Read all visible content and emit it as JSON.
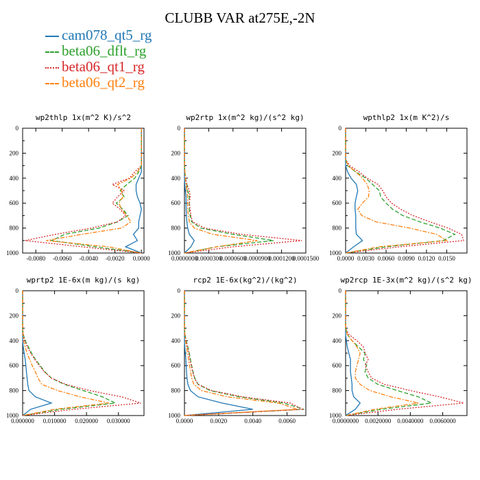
{
  "title": "CLUBB VAR at275E,-2N",
  "colors": {
    "cam078_qt5_rg": "#1f77b4",
    "beta06_dflt_rg": "#2ca02c",
    "beta06_qt1_rg": "#d62728",
    "beta06_qt2_rg": "#ff7f0e"
  },
  "legend": [
    {
      "name": "cam078_qt5_rg",
      "color": "#1f77b4",
      "dash": "solid"
    },
    {
      "name": "beta06_dflt_rg",
      "color": "#2ca02c",
      "dash": "dashed"
    },
    {
      "name": "beta06_qt1_rg",
      "color": "#d62728",
      "dash": "dotted"
    },
    {
      "name": "beta06_qt2_rg",
      "color": "#ff7f0e",
      "dash": "dashdot"
    }
  ],
  "chart_data": [
    {
      "type": "line",
      "title": "wp2thlp  1x(m^2 K)/s^2",
      "xlim": [
        -0.009,
        0.0002
      ],
      "ylim": [
        1000,
        0
      ],
      "xticks": [
        -0.008,
        -0.006,
        -0.004,
        -0.002,
        0.0
      ],
      "xtick_labels": [
        "-0.0080",
        "-0.0060",
        "-0.0040",
        "-0.0020",
        "0.0000"
      ],
      "yticks": [
        0,
        200,
        400,
        600,
        800,
        1000
      ],
      "y_levels": [
        0,
        300,
        350,
        400,
        450,
        500,
        550,
        600,
        650,
        700,
        750,
        800,
        850,
        900,
        950,
        1000
      ],
      "series": [
        {
          "name": "cam078_qt5_rg",
          "x": [
            0.0,
            0.0,
            0.0,
            -0.0002,
            -0.0004,
            -0.0004,
            -0.0003,
            -0.0001,
            0.0,
            -0.0001,
            -0.0002,
            -0.0002,
            -0.0006,
            -0.0003,
            -0.0012,
            0.0
          ]
        },
        {
          "name": "beta06_dflt_rg",
          "x": [
            0.0,
            0.0,
            -0.0002,
            -0.0005,
            -0.0011,
            -0.0016,
            -0.0013,
            -0.0019,
            -0.0014,
            -0.001,
            -0.0018,
            -0.0032,
            -0.0058,
            -0.0068,
            -0.0035,
            0.0
          ]
        },
        {
          "name": "beta06_qt1_rg",
          "x": [
            0.0,
            0.0,
            -0.0005,
            -0.0009,
            -0.0022,
            -0.0013,
            -0.0018,
            -0.0022,
            -0.0016,
            -0.0012,
            -0.0018,
            -0.0038,
            -0.0065,
            -0.0088,
            -0.0045,
            0.0
          ]
        },
        {
          "name": "beta06_qt2_rg",
          "x": [
            0.0,
            0.0,
            -0.0003,
            -0.0008,
            -0.0018,
            -0.0015,
            -0.0014,
            -0.0017,
            -0.0015,
            -0.0011,
            -0.0008,
            -0.0015,
            -0.0045,
            -0.0072,
            -0.0025,
            0.0
          ]
        }
      ]
    },
    {
      "type": "line",
      "title": "wp2rtp  1x(m^2 kg)/(s^2 kg)",
      "xlim": [
        0.0,
        0.00015
      ],
      "ylim": [
        1000,
        0
      ],
      "xticks": [
        0.0,
        3e-05,
        6e-05,
        9e-05,
        0.00012,
        0.00015
      ],
      "xtick_labels": [
        "0.0000000",
        "0.0000300",
        "0.0000600",
        "0.0000900",
        "0.0001200",
        "0.0001500"
      ],
      "yticks": [
        0,
        200,
        400,
        600,
        800,
        1000
      ],
      "y_levels": [
        0,
        300,
        350,
        400,
        450,
        500,
        550,
        600,
        650,
        700,
        750,
        800,
        850,
        900,
        950,
        1000
      ],
      "series": [
        {
          "name": "cam078_qt5_rg",
          "x": [
            0.0,
            0.0,
            0.0,
            0.0,
            5e-07,
            1e-06,
            2e-06,
            2e-06,
            2e-06,
            2.5e-06,
            3e-06,
            4e-06,
            6e-06,
            1.2e-05,
            8e-06,
            0.0
          ]
        },
        {
          "name": "beta06_dflt_rg",
          "x": [
            0.0,
            0.0,
            5e-07,
            1e-06,
            3e-06,
            4e-06,
            6e-06,
            6e-06,
            6e-06,
            7e-06,
            9e-06,
            2e-05,
            6e-05,
            0.00011,
            4e-05,
            0.0
          ]
        },
        {
          "name": "beta06_qt1_rg",
          "x": [
            0.0,
            0.0,
            5e-07,
            1.5e-06,
            3e-06,
            6e-06,
            7e-06,
            6e-06,
            7e-06,
            8e-06,
            1e-05,
            2.5e-05,
            7e-05,
            0.000145,
            6e-05,
            0.0
          ]
        },
        {
          "name": "beta06_qt2_rg",
          "x": [
            0.0,
            0.0,
            5e-07,
            1e-06,
            2e-06,
            3e-06,
            4e-06,
            4e-06,
            4e-06,
            5e-06,
            6e-06,
            1.2e-05,
            3.5e-05,
            9e-05,
            4e-05,
            0.0
          ]
        }
      ]
    },
    {
      "type": "line",
      "title": "wpthlp2  1x(m K^2)/s",
      "xlim": [
        0.0,
        0.018
      ],
      "ylim": [
        1000,
        0
      ],
      "xticks": [
        0.0,
        0.003,
        0.006,
        0.009,
        0.012,
        0.015
      ],
      "xtick_labels": [
        "0.0000",
        "0.0030",
        "0.0060",
        "0.0090",
        "0.0120",
        "0.0150"
      ],
      "yticks": [
        0,
        200,
        400,
        600,
        800,
        1000
      ],
      "y_levels": [
        0,
        250,
        300,
        350,
        400,
        450,
        500,
        550,
        600,
        650,
        700,
        750,
        800,
        850,
        900,
        950,
        1000
      ],
      "series": [
        {
          "name": "cam078_qt5_rg",
          "x": [
            0.0,
            0.0,
            0.0,
            0.0003,
            0.0008,
            0.0016,
            0.0018,
            0.0016,
            0.0014,
            0.0014,
            0.0015,
            0.0015,
            0.0015,
            0.0016,
            0.0025,
            0.0012,
            0.0
          ]
        },
        {
          "name": "beta06_dflt_rg",
          "x": [
            0.0,
            0.0,
            0.0003,
            0.0015,
            0.003,
            0.004,
            0.005,
            0.0052,
            0.006,
            0.007,
            0.0085,
            0.011,
            0.014,
            0.0162,
            0.0145,
            0.006,
            0.0
          ]
        },
        {
          "name": "beta06_qt1_rg",
          "x": [
            0.0,
            0.0,
            0.0006,
            0.002,
            0.0032,
            0.0048,
            0.0055,
            0.006,
            0.0068,
            0.0082,
            0.01,
            0.0125,
            0.0152,
            0.0172,
            0.0175,
            0.008,
            0.0
          ]
        },
        {
          "name": "beta06_qt2_rg",
          "x": [
            0.0,
            0.0,
            0.0004,
            0.0015,
            0.0025,
            0.0032,
            0.0035,
            0.0034,
            0.0025,
            0.0018,
            0.0024,
            0.0045,
            0.0095,
            0.0135,
            0.015,
            0.005,
            0.0
          ]
        }
      ]
    },
    {
      "type": "line",
      "title": "wprtp2  1E-6x(m kg)/(s kg)",
      "xlim": [
        0.0,
        0.038
      ],
      "ylim": [
        1000,
        0
      ],
      "xticks": [
        0.0,
        0.01,
        0.02,
        0.03
      ],
      "xtick_labels": [
        "0.000000",
        "0.010000",
        "0.020000",
        "0.030000"
      ],
      "yticks": [
        0,
        200,
        400,
        600,
        800,
        1000
      ],
      "y_levels": [
        0,
        300,
        350,
        400,
        450,
        500,
        550,
        600,
        650,
        700,
        750,
        800,
        850,
        900,
        950,
        1000
      ],
      "series": [
        {
          "name": "cam078_qt5_rg",
          "x": [
            0.0,
            0.0,
            0.0,
            0.0,
            0.0002,
            0.0005,
            0.0008,
            0.001,
            0.0012,
            0.0014,
            0.0016,
            0.002,
            0.004,
            0.009,
            0.0025,
            0.0
          ]
        },
        {
          "name": "beta06_dflt_rg",
          "x": [
            0.0,
            0.0,
            0.0002,
            0.0008,
            0.0018,
            0.0028,
            0.004,
            0.0055,
            0.007,
            0.009,
            0.013,
            0.019,
            0.025,
            0.029,
            0.012,
            0.0
          ]
        },
        {
          "name": "beta06_qt1_rg",
          "x": [
            0.0,
            0.0,
            0.0002,
            0.0006,
            0.0015,
            0.0025,
            0.0038,
            0.0052,
            0.0068,
            0.009,
            0.0135,
            0.021,
            0.031,
            0.037,
            0.016,
            0.0
          ]
        },
        {
          "name": "beta06_qt2_rg",
          "x": [
            0.0,
            0.0,
            0.0001,
            0.0003,
            0.0008,
            0.0014,
            0.0022,
            0.003,
            0.004,
            0.0048,
            0.006,
            0.011,
            0.018,
            0.027,
            0.01,
            0.0
          ]
        }
      ]
    },
    {
      "type": "line",
      "title": "rcp2  1E-6x(kg^2)/(kg^2)",
      "xlim": [
        0.0,
        0.0071
      ],
      "ylim": [
        1000,
        0
      ],
      "xticks": [
        0.0,
        0.002,
        0.004,
        0.006
      ],
      "xtick_labels": [
        "0.0000",
        "0.0020",
        "0.0040",
        "0.0060"
      ],
      "yticks": [
        0,
        200,
        400,
        600,
        800,
        1000
      ],
      "y_levels": [
        0,
        300,
        350,
        400,
        450,
        500,
        550,
        600,
        650,
        700,
        750,
        800,
        850,
        900,
        950,
        1000
      ],
      "series": [
        {
          "name": "cam078_qt5_rg",
          "x": [
            0.0,
            0.0,
            0.0,
            0.0,
            2e-05,
            5e-05,
            8e-05,
            0.0001,
            0.00012,
            0.00015,
            0.0002,
            0.00035,
            0.0008,
            0.0022,
            0.004,
            0.0
          ]
        },
        {
          "name": "beta06_dflt_rg",
          "x": [
            0.0,
            0.0,
            3e-05,
            0.0001,
            0.0002,
            0.00028,
            0.00035,
            0.00042,
            0.0005,
            0.0006,
            0.0008,
            0.0015,
            0.0032,
            0.0058,
            0.007,
            0.0
          ]
        },
        {
          "name": "beta06_qt1_rg",
          "x": [
            0.0,
            0.0,
            3e-05,
            0.0001,
            0.00018,
            0.00026,
            0.00032,
            0.0004,
            0.00048,
            0.00058,
            0.0008,
            0.0016,
            0.0034,
            0.0062,
            0.0069,
            0.0
          ]
        },
        {
          "name": "beta06_qt2_rg",
          "x": [
            0.0,
            0.0,
            2e-05,
            6e-05,
            0.00012,
            0.00018,
            0.00024,
            0.0003,
            0.00036,
            0.00042,
            0.00055,
            0.001,
            0.0025,
            0.0055,
            0.0066,
            0.0
          ]
        }
      ]
    },
    {
      "type": "line",
      "title": "wp2rcp  1E-3x(m^2 kg)/(s^2 kg)",
      "xlim": [
        0.0,
        0.0075
      ],
      "ylim": [
        1000,
        0
      ],
      "xticks": [
        0.0,
        0.002,
        0.004,
        0.006
      ],
      "xtick_labels": [
        "0.0000000",
        "0.0020000",
        "0.0040000",
        "0.0060000"
      ],
      "yticks": [
        0,
        200,
        400,
        600,
        800,
        1000
      ],
      "y_levels": [
        0,
        300,
        350,
        400,
        450,
        500,
        550,
        600,
        650,
        700,
        750,
        800,
        850,
        900,
        950,
        1000
      ],
      "series": [
        {
          "name": "cam078_qt5_rg",
          "x": [
            0.0,
            0.0,
            0.0,
            5e-05,
            0.0001,
            0.0002,
            0.0003,
            0.0003,
            0.0003,
            0.00035,
            0.0004,
            0.0004,
            0.0005,
            0.0009,
            0.0006,
            0.0
          ]
        },
        {
          "name": "beta06_dflt_rg",
          "x": [
            0.0,
            0.0,
            0.0001,
            0.0004,
            0.0008,
            0.0012,
            0.0011,
            0.0013,
            0.0012,
            0.0014,
            0.002,
            0.0032,
            0.0045,
            0.0053,
            0.0022,
            0.0
          ]
        },
        {
          "name": "beta06_qt1_rg",
          "x": [
            0.0,
            0.0,
            0.0002,
            0.0007,
            0.0011,
            0.0012,
            0.0014,
            0.0012,
            0.0014,
            0.0016,
            0.0024,
            0.004,
            0.0058,
            0.0073,
            0.0032,
            0.0
          ]
        },
        {
          "name": "beta06_qt2_rg",
          "x": [
            0.0,
            0.0,
            0.0001,
            0.0004,
            0.0007,
            0.0009,
            0.0008,
            0.0007,
            0.0006,
            0.0006,
            0.0009,
            0.0015,
            0.0028,
            0.0045,
            0.0018,
            0.0
          ]
        }
      ]
    }
  ]
}
